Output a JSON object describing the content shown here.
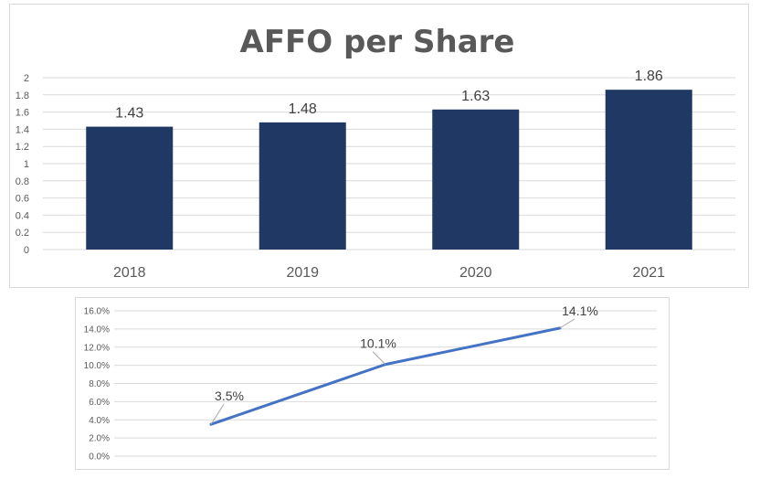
{
  "chart_data": [
    {
      "type": "bar",
      "title": "AFFO per Share",
      "categories": [
        "2018",
        "2019",
        "2020",
        "2021"
      ],
      "values": [
        1.43,
        1.48,
        1.63,
        1.86
      ],
      "data_labels": [
        "1.43",
        "1.48",
        "1.63",
        "1.86"
      ],
      "ylim": [
        0,
        2
      ],
      "yticks": [
        "0",
        "0.2",
        "0.4",
        "0.6",
        "0.8",
        "1",
        "1.2",
        "1.4",
        "1.6",
        "1.8",
        "2"
      ],
      "grid": true,
      "color": "#1f3864"
    },
    {
      "type": "line",
      "values": [
        3.5,
        10.1,
        14.1
      ],
      "data_labels": [
        "3.5%",
        "10.1%",
        "14.1%"
      ],
      "ylim": [
        0,
        16
      ],
      "yticks": [
        "0.0%",
        "2.0%",
        "4.0%",
        "6.0%",
        "8.0%",
        "10.0%",
        "12.0%",
        "14.0%",
        "16.0%"
      ],
      "grid": true,
      "color": "#4472c4"
    }
  ]
}
